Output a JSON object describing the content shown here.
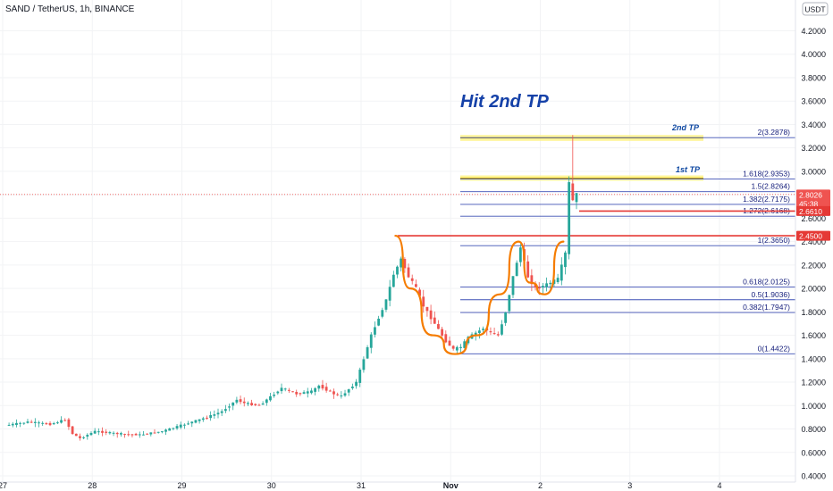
{
  "header": {
    "symbol_line": "SAND / TetherUS, 1h, BINANCE",
    "currency": "USDT"
  },
  "annotations": {
    "headline": "Hit 2nd TP",
    "tp2_label": "2nd TP",
    "tp1_label": "1st TP"
  },
  "chart_data": {
    "type": "candlestick",
    "title": "SAND / TetherUS, 1h, BINANCE",
    "ylim": [
      0.4,
      4.35
    ],
    "y_ticks": [
      "0.4000",
      "0.6000",
      "0.8000",
      "1.0000",
      "1.2000",
      "1.4000",
      "1.6000",
      "1.8000",
      "2.0000",
      "2.2000",
      "2.4000",
      "2.6000",
      "2.8000",
      "3.0000",
      "3.2000",
      "3.4000",
      "3.6000",
      "3.8000",
      "4.0000",
      "4.2000"
    ],
    "x_ticks": [
      "27",
      "28",
      "29",
      "30",
      "31",
      "Nov",
      "2",
      "3",
      "4"
    ],
    "x_tick_hours": [
      0,
      24,
      48,
      72,
      96,
      120,
      144,
      168,
      192
    ],
    "xlim_hours": [
      0,
      222
    ],
    "price_scale_labels": {
      "last": "2.8026",
      "countdown": "45:38",
      "level_a": "2.6610",
      "level_b": "2.4500"
    },
    "fib_levels": [
      {
        "label": "2(3.2878)",
        "value": 3.2878
      },
      {
        "label": "1.618(2.9353)",
        "value": 2.9353
      },
      {
        "label": "1.5(2.8264)",
        "value": 2.8264
      },
      {
        "label": "1.382(2.7175)",
        "value": 2.7175
      },
      {
        "label": "1.272(2.6168)",
        "value": 2.6168
      },
      {
        "label": "1(2.3650)",
        "value": 2.365
      },
      {
        "label": "0.618(2.0125)",
        "value": 2.0125
      },
      {
        "label": "0.5(1.9036)",
        "value": 1.9036
      },
      {
        "label": "0.382(1.7947)",
        "value": 1.7947
      },
      {
        "label": "0(1.4422)",
        "value": 1.4422
      }
    ],
    "horizontal_levels": [
      {
        "name": "neckline",
        "value": 2.45,
        "color": "#e53935"
      },
      {
        "name": "stop",
        "value": 2.661,
        "color": "#e53935"
      },
      {
        "name": "last-price",
        "value": 2.8026,
        "color": "#ef5350"
      }
    ],
    "tp_zones": [
      {
        "name": "2nd TP",
        "from": 3.26,
        "to": 3.31
      },
      {
        "name": "1st TP",
        "from": 2.92,
        "to": 2.965
      }
    ],
    "colors": {
      "up": "#26a69a",
      "down": "#ef5350",
      "fib": "#3f51b5",
      "pattern": "#f57c00",
      "zone": "#fff176",
      "annotation": "#0d47a1"
    },
    "price_path": [
      [
        0,
        0.83
      ],
      [
        6,
        0.86
      ],
      [
        12,
        0.84
      ],
      [
        16,
        0.88
      ],
      [
        18,
        0.76
      ],
      [
        20,
        0.72
      ],
      [
        24,
        0.78
      ],
      [
        30,
        0.76
      ],
      [
        36,
        0.75
      ],
      [
        42,
        0.78
      ],
      [
        46,
        0.82
      ],
      [
        50,
        0.86
      ],
      [
        54,
        0.9
      ],
      [
        58,
        0.95
      ],
      [
        62,
        1.05
      ],
      [
        64,
        1.02
      ],
      [
        68,
        1.0
      ],
      [
        72,
        1.1
      ],
      [
        74,
        1.15
      ],
      [
        78,
        1.1
      ],
      [
        82,
        1.12
      ],
      [
        84,
        1.17
      ],
      [
        88,
        1.1
      ],
      [
        90,
        1.08
      ],
      [
        94,
        1.2
      ],
      [
        96,
        1.4
      ],
      [
        98,
        1.6
      ],
      [
        100,
        1.75
      ],
      [
        102,
        1.9
      ],
      [
        104,
        2.12
      ],
      [
        106,
        2.25
      ],
      [
        108,
        2.1
      ],
      [
        110,
        2.0
      ],
      [
        112,
        1.85
      ],
      [
        114,
        1.75
      ],
      [
        116,
        1.65
      ],
      [
        118,
        1.55
      ],
      [
        120,
        1.48
      ],
      [
        122,
        1.5
      ],
      [
        124,
        1.58
      ],
      [
        126,
        1.62
      ],
      [
        128,
        1.66
      ],
      [
        130,
        1.62
      ],
      [
        132,
        1.6
      ],
      [
        134,
        1.8
      ],
      [
        136,
        2.1
      ],
      [
        138,
        2.35
      ],
      [
        140,
        2.1
      ],
      [
        142,
        2.0
      ],
      [
        144,
        2.02
      ],
      [
        146,
        2.05
      ],
      [
        148,
        2.08
      ],
      [
        150,
        2.3
      ],
      [
        151,
        2.9
      ],
      [
        152,
        2.75
      ],
      [
        153,
        2.8026
      ]
    ],
    "cup_handle_pattern": [
      [
        104,
        2.45
      ],
      [
        108,
        2.0
      ],
      [
        114,
        1.6
      ],
      [
        120,
        1.44
      ],
      [
        126,
        1.6
      ],
      [
        132,
        1.95
      ],
      [
        137,
        2.4
      ],
      [
        140,
        2.05
      ],
      [
        144,
        1.95
      ],
      [
        149,
        2.4
      ]
    ]
  }
}
